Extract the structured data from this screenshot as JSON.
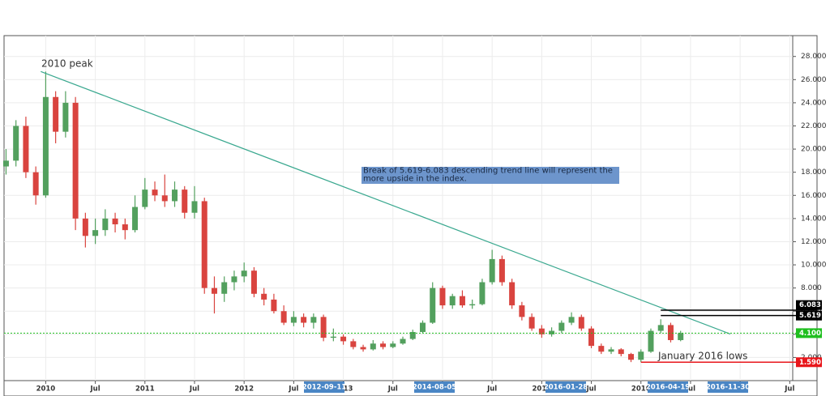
{
  "chart_data": {
    "type": "candlestick",
    "up_color": "#53a05e",
    "down_color": "#d9443f",
    "xlim": [
      2009.58,
      2017.53
    ],
    "ylim": [
      0,
      29.8
    ],
    "grid": true,
    "yticks": [
      {
        "value": 2,
        "label": "2.000"
      },
      {
        "value": 4,
        "label": "4.000"
      },
      {
        "value": 6,
        "label": "6.000"
      },
      {
        "value": 8,
        "label": "8.000"
      },
      {
        "value": 10,
        "label": "10.000"
      },
      {
        "value": 12,
        "label": "12.000"
      },
      {
        "value": 14,
        "label": "14.000"
      },
      {
        "value": 16,
        "label": "16.000"
      },
      {
        "value": 18,
        "label": "18.000"
      },
      {
        "value": 20,
        "label": "20.000"
      },
      {
        "value": 22,
        "label": "22.000"
      },
      {
        "value": 24,
        "label": "24.000"
      },
      {
        "value": 26,
        "label": "26.000"
      },
      {
        "value": 28,
        "label": "28.000"
      }
    ],
    "xticks": [
      {
        "value": 2010,
        "label": "2010"
      },
      {
        "value": 2010.5,
        "label": "Jul"
      },
      {
        "value": 2011,
        "label": "2011"
      },
      {
        "value": 2011.5,
        "label": "Jul"
      },
      {
        "value": 2012,
        "label": "2012"
      },
      {
        "value": 2012.5,
        "label": "Jul"
      },
      {
        "value": 2013,
        "label": "2013"
      },
      {
        "value": 2013.5,
        "label": "Jul"
      },
      {
        "value": 2014,
        "label": "2014"
      },
      {
        "value": 2014.5,
        "label": "Jul"
      },
      {
        "value": 2015,
        "label": "2015"
      },
      {
        "value": 2015.5,
        "label": "Jul"
      },
      {
        "value": 2016,
        "label": "2016"
      },
      {
        "value": 2016.5,
        "label": "Jul"
      },
      {
        "value": 2017,
        "label": "2017"
      },
      {
        "value": 2017.5,
        "label": "Jul"
      }
    ],
    "axis_markers": [
      "2012-09-11",
      "2014-08-05",
      "2016-01-28",
      "2016-04-19",
      "2016-11-30"
    ],
    "x": [
      2009.6,
      2009.7,
      2009.8,
      2009.9,
      2010.0,
      2010.1,
      2010.2,
      2010.3,
      2010.4,
      2010.5,
      2010.6,
      2010.7,
      2010.8,
      2010.9,
      2011.0,
      2011.1,
      2011.2,
      2011.3,
      2011.4,
      2011.5,
      2011.6,
      2011.7,
      2011.8,
      2011.9,
      2012.0,
      2012.1,
      2012.2,
      2012.3,
      2012.4,
      2012.5,
      2012.6,
      2012.7,
      2012.8,
      2012.9,
      2013.0,
      2013.1,
      2013.2,
      2013.3,
      2013.4,
      2013.5,
      2013.6,
      2013.7,
      2013.8,
      2013.9,
      2014.0,
      2014.1,
      2014.2,
      2014.3,
      2014.4,
      2014.5,
      2014.6,
      2014.7,
      2014.8,
      2014.9,
      2015.0,
      2015.1,
      2015.2,
      2015.3,
      2015.4,
      2015.5,
      2015.6,
      2015.7,
      2015.8,
      2015.9,
      2016.0,
      2016.1,
      2016.2,
      2016.3,
      2016.4
    ],
    "ohlc": [
      [
        18.5,
        20,
        17.8,
        19
      ],
      [
        19,
        22.5,
        18.5,
        22
      ],
      [
        22,
        22.8,
        17.5,
        18
      ],
      [
        18,
        18.5,
        15.2,
        16
      ],
      [
        16,
        26.7,
        15.8,
        24.5
      ],
      [
        24.5,
        25,
        20.5,
        21.5
      ],
      [
        21.5,
        25,
        21,
        24
      ],
      [
        24,
        24.5,
        13,
        14
      ],
      [
        14,
        14.5,
        11.5,
        12.5
      ],
      [
        12.5,
        14,
        11.8,
        13
      ],
      [
        13,
        14.8,
        12.5,
        14
      ],
      [
        14,
        14.5,
        12.8,
        13.5
      ],
      [
        13.5,
        14,
        12.2,
        13
      ],
      [
        13,
        16,
        12.8,
        15
      ],
      [
        15,
        17.5,
        14.8,
        16.5
      ],
      [
        16.5,
        17.2,
        15.5,
        16
      ],
      [
        16,
        17.8,
        15,
        15.5
      ],
      [
        15.5,
        17.2,
        15,
        16.5
      ],
      [
        16.5,
        16.8,
        14,
        14.5
      ],
      [
        14.5,
        16.8,
        14,
        15.5
      ],
      [
        15.5,
        15.8,
        7.5,
        8
      ],
      [
        8,
        9,
        5.8,
        7.5
      ],
      [
        7.5,
        9,
        6.8,
        8.5
      ],
      [
        8.5,
        9.5,
        7.8,
        9
      ],
      [
        9,
        10.2,
        8.5,
        9.5
      ],
      [
        9.5,
        9.8,
        7.2,
        7.5
      ],
      [
        7.5,
        8,
        6.5,
        7
      ],
      [
        7,
        7.5,
        5.8,
        6
      ],
      [
        6,
        6.5,
        4.8,
        5
      ],
      [
        5,
        6,
        4.7,
        5.5
      ],
      [
        5.5,
        5.8,
        4.6,
        5
      ],
      [
        5,
        5.8,
        4.5,
        5.5
      ],
      [
        5.5,
        5.7,
        3.4,
        3.7
      ],
      [
        3.7,
        4.5,
        3.4,
        3.8
      ],
      [
        3.8,
        4,
        3.1,
        3.4
      ],
      [
        3.4,
        3.6,
        2.7,
        2.9
      ],
      [
        2.9,
        3.1,
        2.5,
        2.7
      ],
      [
        2.7,
        3.5,
        2.6,
        3.2
      ],
      [
        3.2,
        3.4,
        2.7,
        2.9
      ],
      [
        2.9,
        3.4,
        2.8,
        3.2
      ],
      [
        3.2,
        3.8,
        3.1,
        3.6
      ],
      [
        3.6,
        4.4,
        3.5,
        4.2
      ],
      [
        4.2,
        5.2,
        4.1,
        5
      ],
      [
        5,
        8.5,
        4.9,
        8
      ],
      [
        8,
        8.2,
        6.2,
        6.5
      ],
      [
        6.5,
        7.5,
        6.2,
        7.3
      ],
      [
        7.3,
        7.8,
        6.3,
        6.5
      ],
      [
        6.5,
        7,
        6.2,
        6.6
      ],
      [
        6.6,
        8.8,
        6.5,
        8.5
      ],
      [
        8.5,
        11.3,
        8.3,
        10.5
      ],
      [
        10.5,
        10.8,
        8.2,
        8.5
      ],
      [
        8.5,
        8.8,
        6.2,
        6.5
      ],
      [
        6.5,
        6.8,
        5.2,
        5.5
      ],
      [
        5.5,
        5.8,
        4.3,
        4.5
      ],
      [
        4.5,
        4.8,
        3.7,
        4
      ],
      [
        4,
        4.6,
        3.8,
        4.3
      ],
      [
        4.3,
        5.2,
        4.1,
        5
      ],
      [
        5,
        5.9,
        4.8,
        5.5
      ],
      [
        5.5,
        5.7,
        4.3,
        4.5
      ],
      [
        4.5,
        4.7,
        2.8,
        3
      ],
      [
        3,
        3.2,
        2.3,
        2.5
      ],
      [
        2.5,
        2.9,
        2.3,
        2.7
      ],
      [
        2.7,
        2.8,
        2.1,
        2.3
      ],
      [
        2.3,
        2.4,
        1.6,
        1.8
      ],
      [
        1.8,
        2.7,
        1.6,
        2.5
      ],
      [
        2.5,
        4.5,
        2.4,
        4.3
      ],
      [
        4.3,
        5.3,
        4.1,
        4.8
      ],
      [
        4.8,
        5,
        3.3,
        3.5
      ],
      [
        3.5,
        4.3,
        3.4,
        4.1
      ]
    ],
    "trend_line": {
      "x": [
        2009.95,
        2016.9
      ],
      "y": [
        26.7,
        4.03
      ],
      "color": "#3aa88f"
    },
    "levels": [
      {
        "value": 6.083,
        "color": "#000000",
        "x_start": 2016.2
      },
      {
        "value": 5.619,
        "color": "#000000",
        "x_start": 2016.2
      },
      {
        "value": 4.1,
        "label": "4.100",
        "color": "#1fbf1f",
        "dotted": true
      },
      {
        "value": 1.59,
        "label": "1.590",
        "color": "#e8161b",
        "x_start": 2016.0
      }
    ],
    "annotations": [
      "2010 peak",
      "January 2016 lows"
    ],
    "note": [
      "Break of 5.619-6.083 descending trend line will represent the",
      "more upside in the index."
    ]
  }
}
